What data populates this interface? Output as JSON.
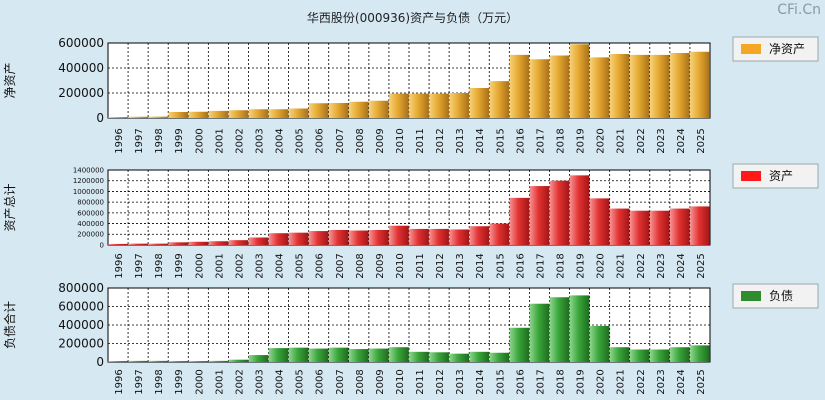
{
  "title": "华西股份(000936)资产与负债（万元）",
  "watermark": "CFi.Cn",
  "colors": {
    "background": "#d6e8f2",
    "plot_background": "#ffffff",
    "grid": "#000000",
    "net_assets": "#e0a020",
    "assets": "#e22828",
    "liabilities": "#2e9a2e"
  },
  "chart_data": [
    {
      "type": "bar",
      "panel": "net-assets",
      "title": "",
      "ylabel": "净资产",
      "legend": "净资产",
      "legend_position": "right",
      "categories": [
        "1996",
        "1997",
        "1998",
        "1999",
        "2000",
        "2001",
        "2002",
        "2003",
        "2004",
        "2005",
        "2006",
        "2007",
        "2008",
        "2009",
        "2010",
        "2011",
        "2012",
        "2013",
        "2014",
        "2015",
        "2016",
        "2017",
        "2018",
        "2019",
        "2020",
        "2021",
        "2022",
        "2023",
        "2024",
        "2025"
      ],
      "values": [
        8000,
        10000,
        11000,
        48000,
        50000,
        57000,
        62000,
        70000,
        70000,
        76000,
        118000,
        120000,
        130000,
        138000,
        195000,
        195000,
        195000,
        200000,
        240000,
        295000,
        505000,
        470000,
        500000,
        590000,
        485000,
        512000,
        505000,
        505000,
        520000,
        530000
      ],
      "ylim": [
        0,
        600000
      ],
      "yticks": [
        "600000",
        "400000",
        "200000",
        "0"
      ],
      "ytick_values": [
        600000,
        400000,
        200000,
        0
      ]
    },
    {
      "type": "bar",
      "panel": "assets",
      "title": "",
      "ylabel": "资产总计",
      "legend": "资产",
      "legend_position": "right",
      "categories": [
        "1996",
        "1997",
        "1998",
        "1999",
        "2000",
        "2001",
        "2002",
        "2003",
        "2004",
        "2005",
        "2006",
        "2007",
        "2008",
        "2009",
        "2010",
        "2011",
        "2012",
        "2013",
        "2014",
        "2015",
        "2016",
        "2017",
        "2018",
        "2019",
        "2020",
        "2021",
        "2022",
        "2023",
        "2024",
        "2025"
      ],
      "values": [
        20000,
        25000,
        25000,
        50000,
        60000,
        70000,
        90000,
        140000,
        220000,
        230000,
        260000,
        280000,
        270000,
        280000,
        360000,
        300000,
        300000,
        290000,
        350000,
        400000,
        880000,
        1100000,
        1200000,
        1300000,
        870000,
        680000,
        640000,
        640000,
        680000,
        720000
      ],
      "ylim": [
        0,
        1400000
      ],
      "yticks": [
        "1400000",
        "1200000",
        "1000000",
        "800000",
        "600000",
        "400000",
        "200000",
        "0"
      ],
      "ytick_values": [
        1400000,
        1200000,
        1000000,
        800000,
        600000,
        400000,
        200000,
        0
      ]
    },
    {
      "type": "bar",
      "panel": "liabilities",
      "title": "",
      "ylabel": "负债合计",
      "legend": "负债",
      "legend_position": "right",
      "categories": [
        "1996",
        "1997",
        "1998",
        "1999",
        "2000",
        "2001",
        "2002",
        "2003",
        "2004",
        "2005",
        "2006",
        "2007",
        "2008",
        "2009",
        "2010",
        "2011",
        "2012",
        "2013",
        "2014",
        "2015",
        "2016",
        "2017",
        "2018",
        "2019",
        "2020",
        "2021",
        "2022",
        "2023",
        "2024",
        "2025"
      ],
      "values": [
        10000,
        12000,
        12000,
        10000,
        10000,
        12000,
        25000,
        75000,
        150000,
        155000,
        145000,
        155000,
        140000,
        145000,
        160000,
        110000,
        105000,
        90000,
        110000,
        100000,
        370000,
        630000,
        700000,
        720000,
        390000,
        160000,
        135000,
        135000,
        160000,
        180000
      ],
      "ylim": [
        0,
        800000
      ],
      "yticks": [
        "800000",
        "600000",
        "400000",
        "200000",
        "0"
      ],
      "ytick_values": [
        800000,
        600000,
        400000,
        200000,
        0
      ]
    }
  ]
}
